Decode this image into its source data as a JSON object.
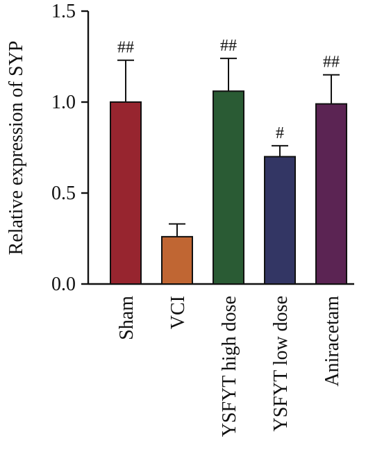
{
  "chart_data": {
    "type": "bar",
    "categories": [
      "Sham",
      "VCI",
      "YSFYT high dose",
      "YSFYT low dose",
      "Aniracetam"
    ],
    "values": [
      1.0,
      0.26,
      1.06,
      0.7,
      0.99
    ],
    "errors": [
      0.23,
      0.07,
      0.18,
      0.06,
      0.16
    ],
    "annotations": [
      "##",
      "",
      "##",
      "#",
      "##"
    ],
    "colors": [
      "#97252F",
      "#C06633",
      "#2A5B34",
      "#333664",
      "#5B2453"
    ],
    "ylabel": "Relative expression of SYP",
    "xlabel": "",
    "title": "",
    "ylim": [
      0.0,
      1.5
    ],
    "yticks": [
      0.0,
      0.5,
      1.0,
      1.5
    ],
    "ytick_labels": [
      "0.0",
      "0.5",
      "1.0",
      "1.5"
    ],
    "grid": false,
    "legend": false
  }
}
